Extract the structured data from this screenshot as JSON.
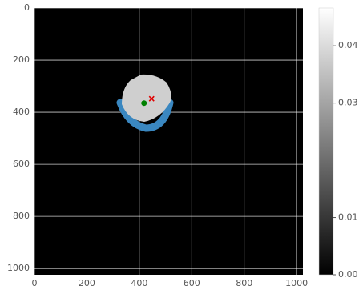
{
  "chart_data": {
    "type": "image",
    "xlim": [
      0,
      1024
    ],
    "ylim": [
      1024,
      0
    ],
    "xticks": [
      0,
      200,
      400,
      600,
      800,
      1000
    ],
    "yticks": [
      0,
      200,
      400,
      600,
      800,
      1000
    ],
    "grid": true,
    "markers": [
      {
        "x": 418,
        "y": 365,
        "color": "#008000"
      },
      {
        "x": 447,
        "y": 348,
        "color": "#e00000"
      }
    ],
    "colorbar": {
      "clim": [
        0,
        0.0466
      ],
      "ticks": [
        {
          "value": 0,
          "label": "0.00"
        },
        0.01,
        0.03,
        0.04
      ]
    }
  }
}
